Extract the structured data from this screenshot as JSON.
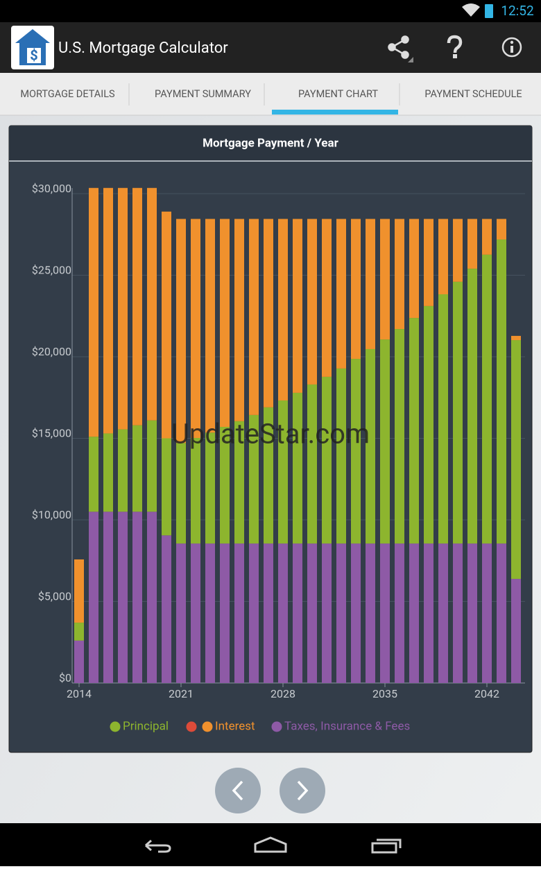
{
  "status_bar": {
    "time": "12:52"
  },
  "app_bar": {
    "title": "U.S. Mortgage Calculator"
  },
  "tabs": [
    "MORTGAGE DETAILS",
    "PAYMENT SUMMARY",
    "PAYMENT CHART",
    "PAYMENT SCHEDULE"
  ],
  "selected_tab": 2,
  "watermark": "UpdateStar.com",
  "chart_data": {
    "type": "bar",
    "stacked": true,
    "title": "Mortgage Payment / Year",
    "categories": [
      "2014",
      null,
      null,
      null,
      null,
      null,
      null,
      "2021",
      null,
      null,
      null,
      null,
      null,
      null,
      "2028",
      null,
      null,
      null,
      null,
      null,
      null,
      "2035",
      null,
      null,
      null,
      null,
      null,
      null,
      "2042",
      null,
      null
    ],
    "series": [
      {
        "name": "Principal",
        "color": "#8db52e",
        "values": [
          1100,
          4600,
          4800,
          5050,
          5300,
          5600,
          5950,
          6160,
          6470,
          6800,
          7150,
          7500,
          7880,
          8350,
          8770,
          9240,
          9750,
          10220,
          10730,
          11320,
          11920,
          12510,
          13150,
          13830,
          14560,
          15280,
          16050,
          16850,
          17710,
          18640,
          14640
        ]
      },
      {
        "name": "Interest",
        "color": "#f0912d",
        "values": [
          3875,
          15250,
          15050,
          14800,
          14550,
          14250,
          13900,
          13740,
          13430,
          13100,
          12750,
          12400,
          12020,
          11550,
          11130,
          10660,
          10150,
          9680,
          9170,
          8580,
          7980,
          7390,
          6750,
          6070,
          5340,
          4620,
          3850,
          3050,
          2190,
          1260,
          260
        ]
      },
      {
        "name": "Taxes, Insurance & Fees",
        "color": "#8e5aa6",
        "values": [
          2600,
          10500,
          10500,
          10500,
          10500,
          10500,
          9050,
          8550,
          8550,
          8550,
          8550,
          8550,
          8550,
          8550,
          8550,
          8550,
          8550,
          8550,
          8550,
          8550,
          8550,
          8550,
          8550,
          8550,
          8550,
          8550,
          8550,
          8550,
          8550,
          8550,
          6380
        ]
      }
    ],
    "ylim": [
      0,
      30000
    ],
    "yticks": [
      {
        "value": 0,
        "label": "$0"
      },
      {
        "value": 5000,
        "label": "$5,000"
      },
      {
        "value": 10000,
        "label": "$10,000"
      },
      {
        "value": 15000,
        "label": "$15,000"
      },
      {
        "value": 20000,
        "label": "$20,000"
      },
      {
        "value": 25000,
        "label": "$25,000"
      },
      {
        "value": 30000,
        "label": "$30,000"
      }
    ],
    "grid": true
  }
}
